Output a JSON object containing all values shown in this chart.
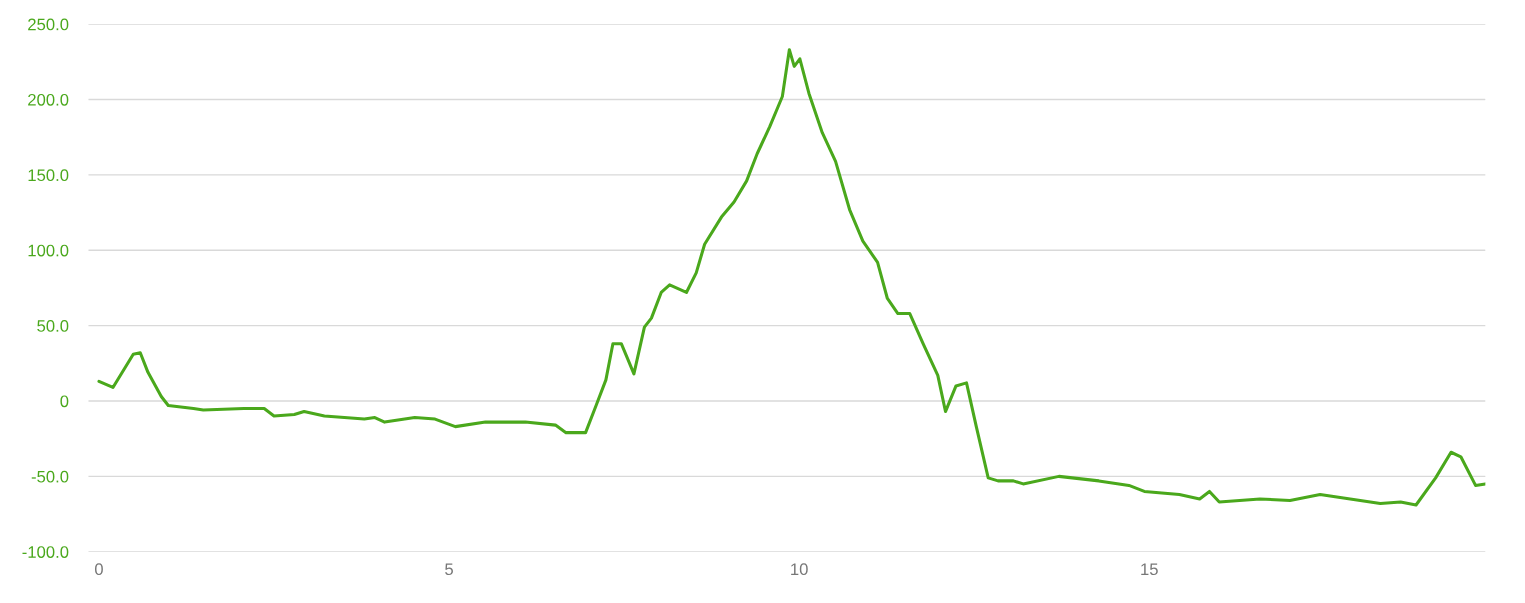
{
  "chart_data": {
    "type": "line",
    "xlim": [
      -0.15,
      19.8
    ],
    "ylim": [
      -100,
      250
    ],
    "xticks": [
      0,
      5,
      10,
      15
    ],
    "yticks": [
      {
        "value": -100,
        "label": "-100.0"
      },
      {
        "value": -50,
        "label": "-50.0"
      },
      0,
      {
        "value": 50,
        "label": "50.0"
      },
      {
        "value": 100,
        "label": "100.0"
      },
      {
        "value": 150,
        "label": "150.0"
      },
      {
        "value": 200,
        "label": "200.0"
      },
      {
        "value": 250,
        "label": "250.0"
      }
    ],
    "grid": "y",
    "marker": "none",
    "line_style": "solid",
    "series": [
      {
        "color": "#4aa81c",
        "x": [
          0,
          0.2,
          0.49,
          0.59,
          0.7,
          0.89,
          0.99,
          1.35,
          1.49,
          2.07,
          2.36,
          2.5,
          2.79,
          2.93,
          3.22,
          3.79,
          3.94,
          4.08,
          4.51,
          4.8,
          5.09,
          5.52,
          6.09,
          6.52,
          6.67,
          6.95,
          7.1,
          7.24,
          7.34,
          7.46,
          7.56,
          7.64,
          7.79,
          7.89,
          8.03,
          8.15,
          8.39,
          8.53,
          8.65,
          8.89,
          9.07,
          9.25,
          9.4,
          9.58,
          9.76,
          9.86,
          9.93,
          10.01,
          10.14,
          10.33,
          10.52,
          10.72,
          10.91,
          11.12,
          11.26,
          11.41,
          11.58,
          11.77,
          11.98,
          12.09,
          12.24,
          12.39,
          12.53,
          12.7,
          12.84,
          13.06,
          13.2,
          13.71,
          14.28,
          14.71,
          14.93,
          15.43,
          15.72,
          15.86,
          16.0,
          16.58,
          17.01,
          17.44,
          17.87,
          18.3,
          18.59,
          18.81,
          19.09,
          19.31,
          19.45,
          19.66,
          19.8
        ],
        "values": [
          13,
          9,
          31,
          32,
          19,
          3,
          -3,
          -5,
          -6,
          -5,
          -5,
          -10,
          -9,
          -7,
          -10,
          -12,
          -11,
          -14,
          -11,
          -12,
          -17,
          -14,
          -14,
          -16,
          -21,
          -21,
          -3,
          14,
          38,
          38,
          27,
          18,
          49,
          55,
          72,
          77,
          72,
          85,
          104,
          122,
          132,
          146,
          164,
          182,
          202,
          233,
          222,
          227,
          204,
          178,
          159,
          127,
          106,
          92,
          68,
          58,
          58,
          38,
          17,
          -7,
          10,
          12,
          -17,
          -51,
          -53,
          -53,
          -55,
          -50,
          -53,
          -56,
          -60,
          -62,
          -65,
          -60,
          -67,
          -65,
          -66,
          -62,
          -65,
          -68,
          -67,
          -69,
          -51,
          -34,
          -37,
          -56,
          -55
        ]
      }
    ]
  }
}
